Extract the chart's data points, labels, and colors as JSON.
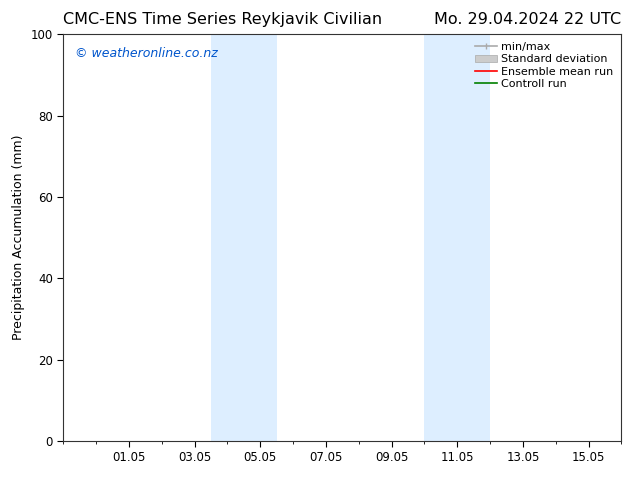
{
  "title_left": "CMC-ENS Time Series Reykjavik Civilian",
  "title_right": "Mo. 29.04.2024 22 UTC",
  "ylabel": "Precipitation Accumulation (mm)",
  "ylim": [
    0,
    100
  ],
  "xtick_labels": [
    "01.05",
    "03.05",
    "05.05",
    "07.05",
    "09.05",
    "11.05",
    "13.05",
    "15.05"
  ],
  "xtick_positions": [
    2,
    4,
    6,
    8,
    10,
    12,
    14,
    16
  ],
  "xlim": [
    0,
    17
  ],
  "shaded_bands": [
    {
      "xstart": 4.5,
      "xend": 5.5,
      "color": "#ddeeff"
    },
    {
      "xstart": 5.5,
      "xend": 6.5,
      "color": "#ddeeff"
    },
    {
      "xstart": 11.0,
      "xend": 12.0,
      "color": "#ddeeff"
    },
    {
      "xstart": 12.0,
      "xend": 13.0,
      "color": "#ddeeff"
    }
  ],
  "legend_entries": [
    {
      "label": "min/max",
      "color": "#aaaaaa",
      "lw": 1.2
    },
    {
      "label": "Standard deviation",
      "color": "#cccccc",
      "lw": 6
    },
    {
      "label": "Ensemble mean run",
      "color": "red",
      "lw": 1.2
    },
    {
      "label": "Controll run",
      "color": "green",
      "lw": 1.2
    }
  ],
  "watermark_text": "© weatheronline.co.nz",
  "watermark_color": "#0055cc",
  "background_color": "#ffffff",
  "plot_bg_color": "#ffffff",
  "title_fontsize": 11.5,
  "label_fontsize": 9,
  "tick_fontsize": 8.5,
  "legend_fontsize": 8,
  "watermark_fontsize": 9
}
